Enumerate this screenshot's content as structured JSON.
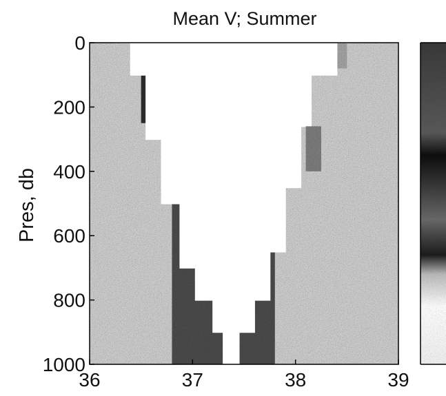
{
  "chart_data": {
    "type": "heatmap",
    "title": "Mean V;  Summer",
    "xlabel": "",
    "ylabel": "Pres, db",
    "xlim": [
      36,
      39
    ],
    "ylim": [
      1000,
      0
    ],
    "xticks": [
      "36",
      "37",
      "38",
      "39"
    ],
    "yticks": [
      "0",
      "200",
      "400",
      "600",
      "800",
      "1000"
    ],
    "colormap": "grayscale speckle (black = strong, white = weak)",
    "colorbar": "right, unlabeled (cut off at image edge)",
    "data_mask": {
      "left_edge": {
        "x": [
          36.25,
          36.4,
          36.55,
          36.7,
          36.88,
          37.03,
          37.2,
          37.3
        ],
        "pres": [
          0,
          100,
          300,
          500,
          700,
          800,
          900,
          1000
        ]
      },
      "right_edge": {
        "x": [
          38.55,
          38.4,
          38.15,
          38.05,
          37.9,
          37.75,
          37.6,
          37.45
        ],
        "pres": [
          0,
          100,
          260,
          450,
          650,
          800,
          900,
          1000
        ]
      },
      "notch": {
        "x": [
          38.1,
          38.25
        ],
        "pres": [
          260,
          400
        ]
      }
    },
    "features": [
      {
        "pres_range": [
          0,
          250
        ],
        "x_range": [
          36.5,
          37.1
        ],
        "intensity": 0.85
      },
      {
        "pres_range": [
          0,
          80
        ],
        "x_range": [
          37.5,
          38.5
        ],
        "intensity": 0.25
      },
      {
        "pres_range": [
          300,
          1000
        ],
        "x_range": [
          36.8,
          37.8
        ],
        "intensity": 0.7
      }
    ]
  },
  "colors": {
    "background": "#ffffff",
    "speckle_light": "#d6d6d6",
    "speckle_dark": "#1a1a1a",
    "axis": "#000000"
  }
}
